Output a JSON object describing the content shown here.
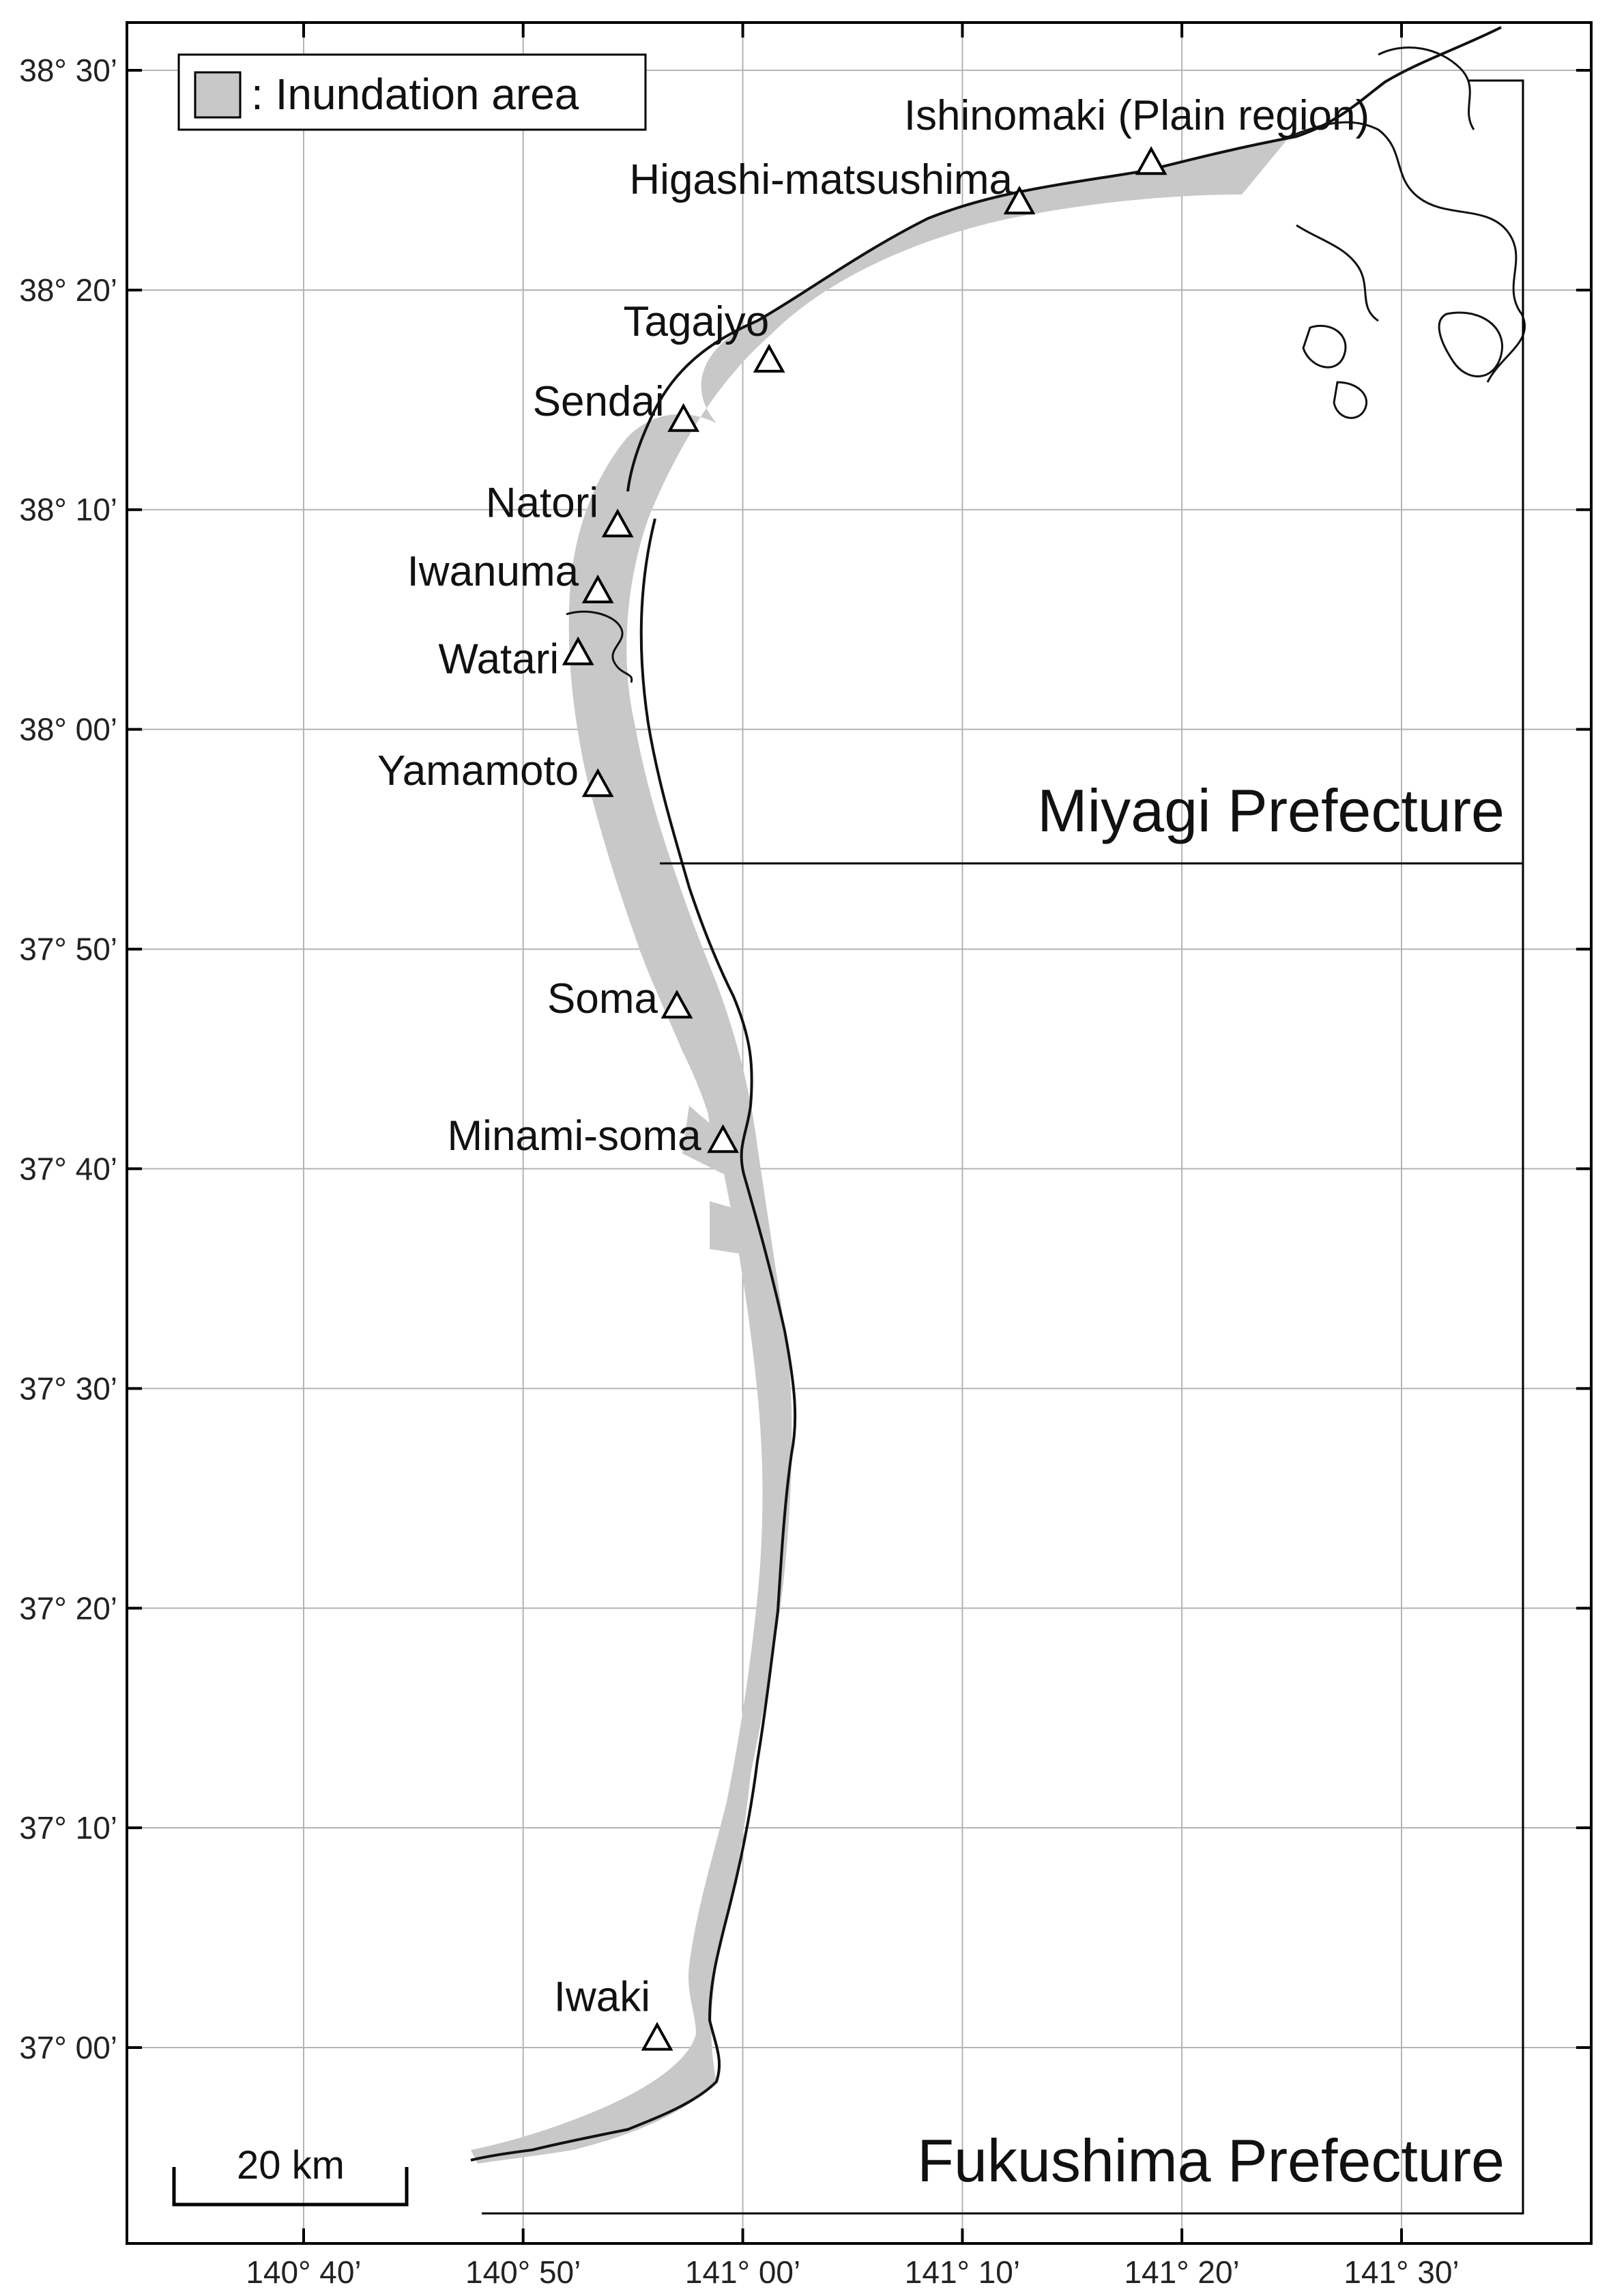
{
  "legend": {
    "label": ": Inundation area",
    "swatch_color": "#c8c8c8"
  },
  "latitude_ticks": [
    {
      "label": "38° 30’",
      "lat": 38.5
    },
    {
      "label": "38° 20’",
      "lat": 38.3333
    },
    {
      "label": "38° 10’",
      "lat": 38.1667
    },
    {
      "label": "38° 00’",
      "lat": 38.0
    },
    {
      "label": "37° 50’",
      "lat": 37.8333
    },
    {
      "label": "37° 40’",
      "lat": 37.6667
    },
    {
      "label": "37° 30’",
      "lat": 37.5
    },
    {
      "label": "37° 20’",
      "lat": 37.3333
    },
    {
      "label": "37° 10’",
      "lat": 37.1667
    },
    {
      "label": "37° 00’",
      "lat": 37.0
    }
  ],
  "longitude_ticks": [
    {
      "label": "140° 40’",
      "lon": 140.6667
    },
    {
      "label": "140° 50’",
      "lon": 140.8333
    },
    {
      "label": "141° 00’",
      "lon": 141.0
    },
    {
      "label": "141° 10’",
      "lon": 141.1667
    },
    {
      "label": "141° 20’",
      "lon": 141.3333
    },
    {
      "label": "141° 30’",
      "lon": 141.5
    }
  ],
  "cities": [
    {
      "name": "Ishinomaki (Plain region)",
      "lat": 38.43,
      "lon": 141.31
    },
    {
      "name": "Higashi-matsushima",
      "lat": 38.4,
      "lon": 141.21
    },
    {
      "name": "Tagajyo",
      "lat": 38.28,
      "lon": 141.02
    },
    {
      "name": "Sendai",
      "lat": 38.235,
      "lon": 140.955
    },
    {
      "name": "Natori",
      "lat": 38.155,
      "lon": 140.905
    },
    {
      "name": "Iwanuma",
      "lat": 38.105,
      "lon": 140.89
    },
    {
      "name": "Watari",
      "lat": 38.058,
      "lon": 140.875
    },
    {
      "name": "Yamamoto",
      "lat": 37.958,
      "lon": 140.89
    },
    {
      "name": "Soma",
      "lat": 37.79,
      "lon": 140.95
    },
    {
      "name": "Minami-soma",
      "lat": 37.688,
      "lon": 140.985
    },
    {
      "name": "Iwaki",
      "lat": 37.007,
      "lon": 140.935
    }
  ],
  "prefectures": [
    {
      "name": "Miyagi Prefecture"
    },
    {
      "name": "Fukushima Prefecture"
    }
  ],
  "scale_bar": {
    "label": "20 km"
  },
  "colors": {
    "inundation": "#c8c8c8",
    "coastline": "#111111",
    "grid": "#b4b4b4",
    "frame": "#000000"
  }
}
